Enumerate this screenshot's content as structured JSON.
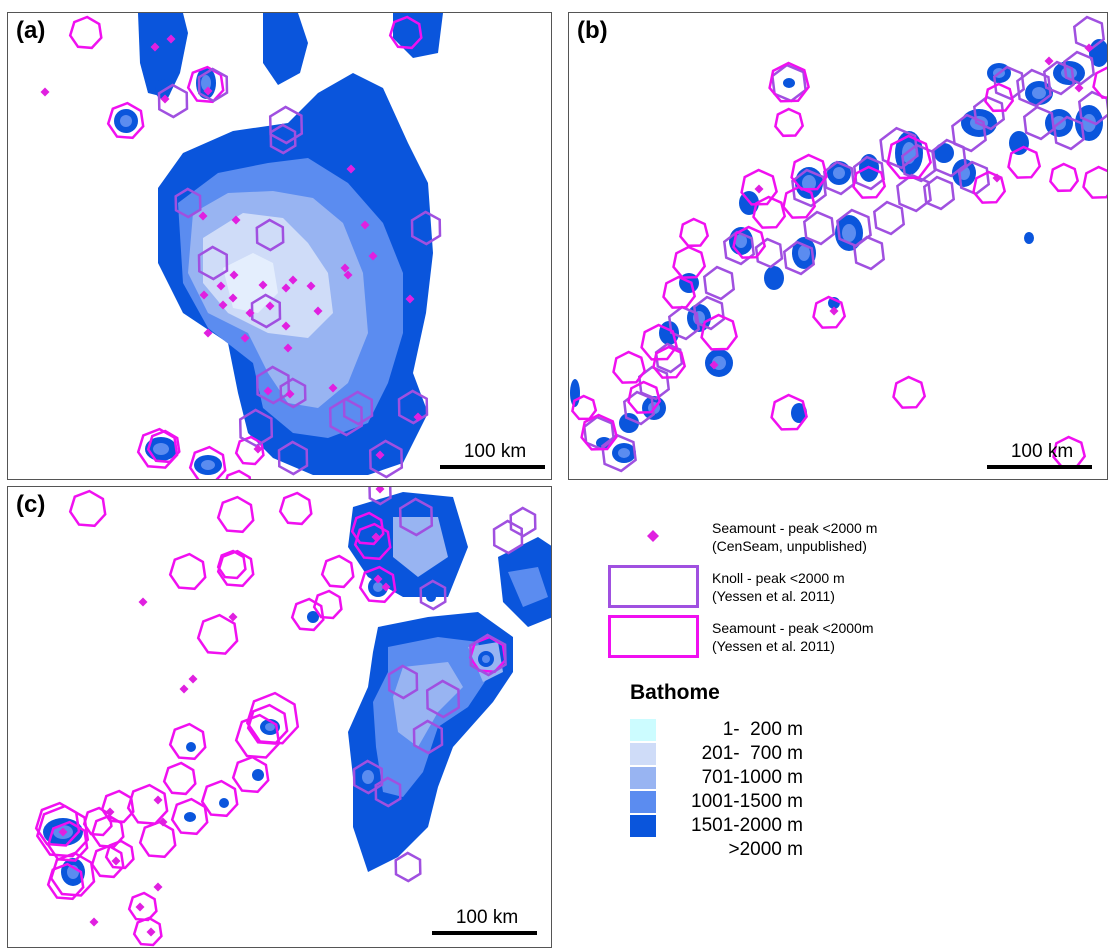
{
  "panels": {
    "a": {
      "label": "(a)",
      "scale": "100 km"
    },
    "b": {
      "label": "(b)",
      "scale": "100 km"
    },
    "c": {
      "label": "(c)",
      "scale": "100 km"
    }
  },
  "legend": {
    "seamount_censeam": {
      "line1": "Seamount - peak <2000 m",
      "line2": "(CenSeam, unpublished)",
      "color": "#e020e0"
    },
    "knoll": {
      "line1": "Knoll - peak <2000 m",
      "line2": "(Yessen et al. 2011)",
      "color": "#a050e0"
    },
    "seamount_yessen": {
      "line1": "Seamount - peak <2000m",
      "line2": "(Yessen et al. 2011)",
      "color": "#f010f0"
    },
    "bathome_title": "Bathome",
    "bathome_classes": [
      {
        "label": "1-  200 m",
        "color": "#ccfcff"
      },
      {
        "label": "201-  700 m",
        "color": "#cfdcf8"
      },
      {
        "label": "701-1000 m",
        "color": "#98b4f2"
      },
      {
        "label": "1001-1500 m",
        "color": "#5b8cf0"
      },
      {
        "label": "1501-2000 m",
        "color": "#0a55dc"
      },
      {
        "label": ">2000 m",
        "color": "#ffffff"
      }
    ]
  },
  "colors": {
    "deep": "#0a55dc",
    "mid": "#5b8cf0",
    "light": "#98b4f2",
    "pale": "#cfdcf8",
    "shallow": "#ccfcff",
    "knoll": "#a050e0",
    "seamount": "#f010f0",
    "point": "#e020e0"
  }
}
